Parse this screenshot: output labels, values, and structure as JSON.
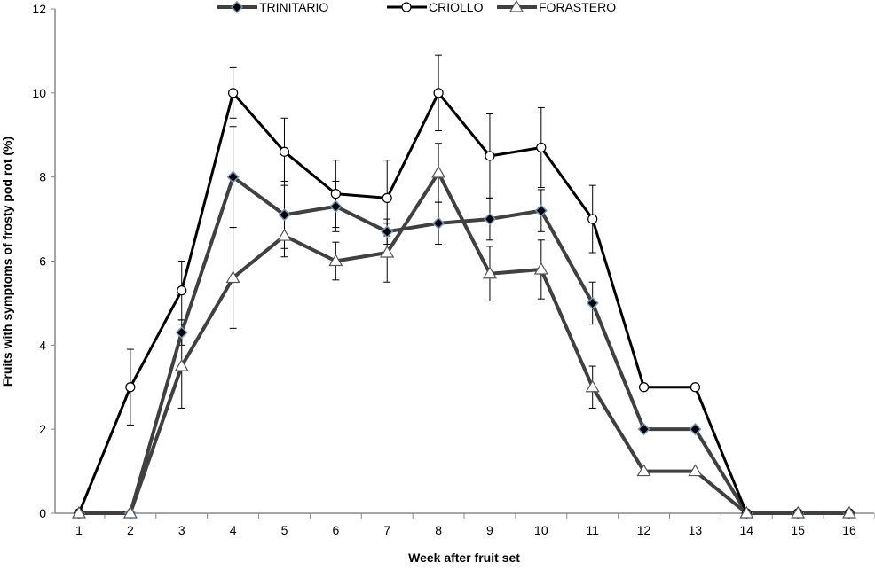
{
  "chart_data": {
    "type": "line",
    "title": "",
    "xlabel": "Week after fruit set",
    "ylabel": "Fruits with symptoms of frosty pod rot (%)",
    "x": [
      1,
      2,
      3,
      4,
      5,
      6,
      7,
      8,
      9,
      10,
      11,
      12,
      13,
      14,
      15,
      16
    ],
    "ylim": [
      0,
      12
    ],
    "yticks": [
      0,
      2,
      4,
      6,
      8,
      10,
      12
    ],
    "grid": false,
    "legend_position": "top",
    "series": [
      {
        "name": "TRINITARIO",
        "marker": "diamond",
        "color": "#404040",
        "marker_fill": "#000000",
        "marker_edge": "#6f93bf",
        "values": [
          0,
          0,
          4.3,
          8.0,
          7.1,
          7.3,
          6.7,
          6.9,
          7.0,
          7.2,
          5.0,
          2,
          2,
          0,
          0,
          0
        ],
        "error": [
          0,
          0,
          0.3,
          1.2,
          0.8,
          0.6,
          0.3,
          0.5,
          0.5,
          0.5,
          0.5,
          0,
          0,
          0,
          0,
          0
        ]
      },
      {
        "name": "CRIOLLO",
        "marker": "circle",
        "color": "#000000",
        "marker_fill": "#ffffff",
        "marker_edge": "#000000",
        "values": [
          0,
          3.0,
          5.3,
          10.0,
          8.6,
          7.6,
          7.5,
          10.0,
          8.5,
          8.7,
          7.0,
          3,
          3,
          0,
          0,
          0
        ],
        "error": [
          0,
          0.9,
          0.7,
          0.6,
          0.8,
          0.8,
          0.9,
          0.9,
          1.0,
          0.95,
          0.8,
          0,
          0,
          0,
          0,
          0
        ]
      },
      {
        "name": "FORASTERO",
        "marker": "triangle",
        "color": "#404040",
        "marker_fill": "#ffffff",
        "marker_edge": "#555555",
        "values": [
          0,
          0,
          3.5,
          5.6,
          6.6,
          6.0,
          6.2,
          8.1,
          5.7,
          5.8,
          3.0,
          1,
          1,
          0,
          0,
          0
        ],
        "error": [
          0,
          0,
          1.0,
          1.2,
          0.5,
          0.45,
          0.7,
          0.7,
          0.65,
          0.7,
          0.5,
          0,
          0,
          0,
          0,
          0
        ]
      }
    ]
  }
}
